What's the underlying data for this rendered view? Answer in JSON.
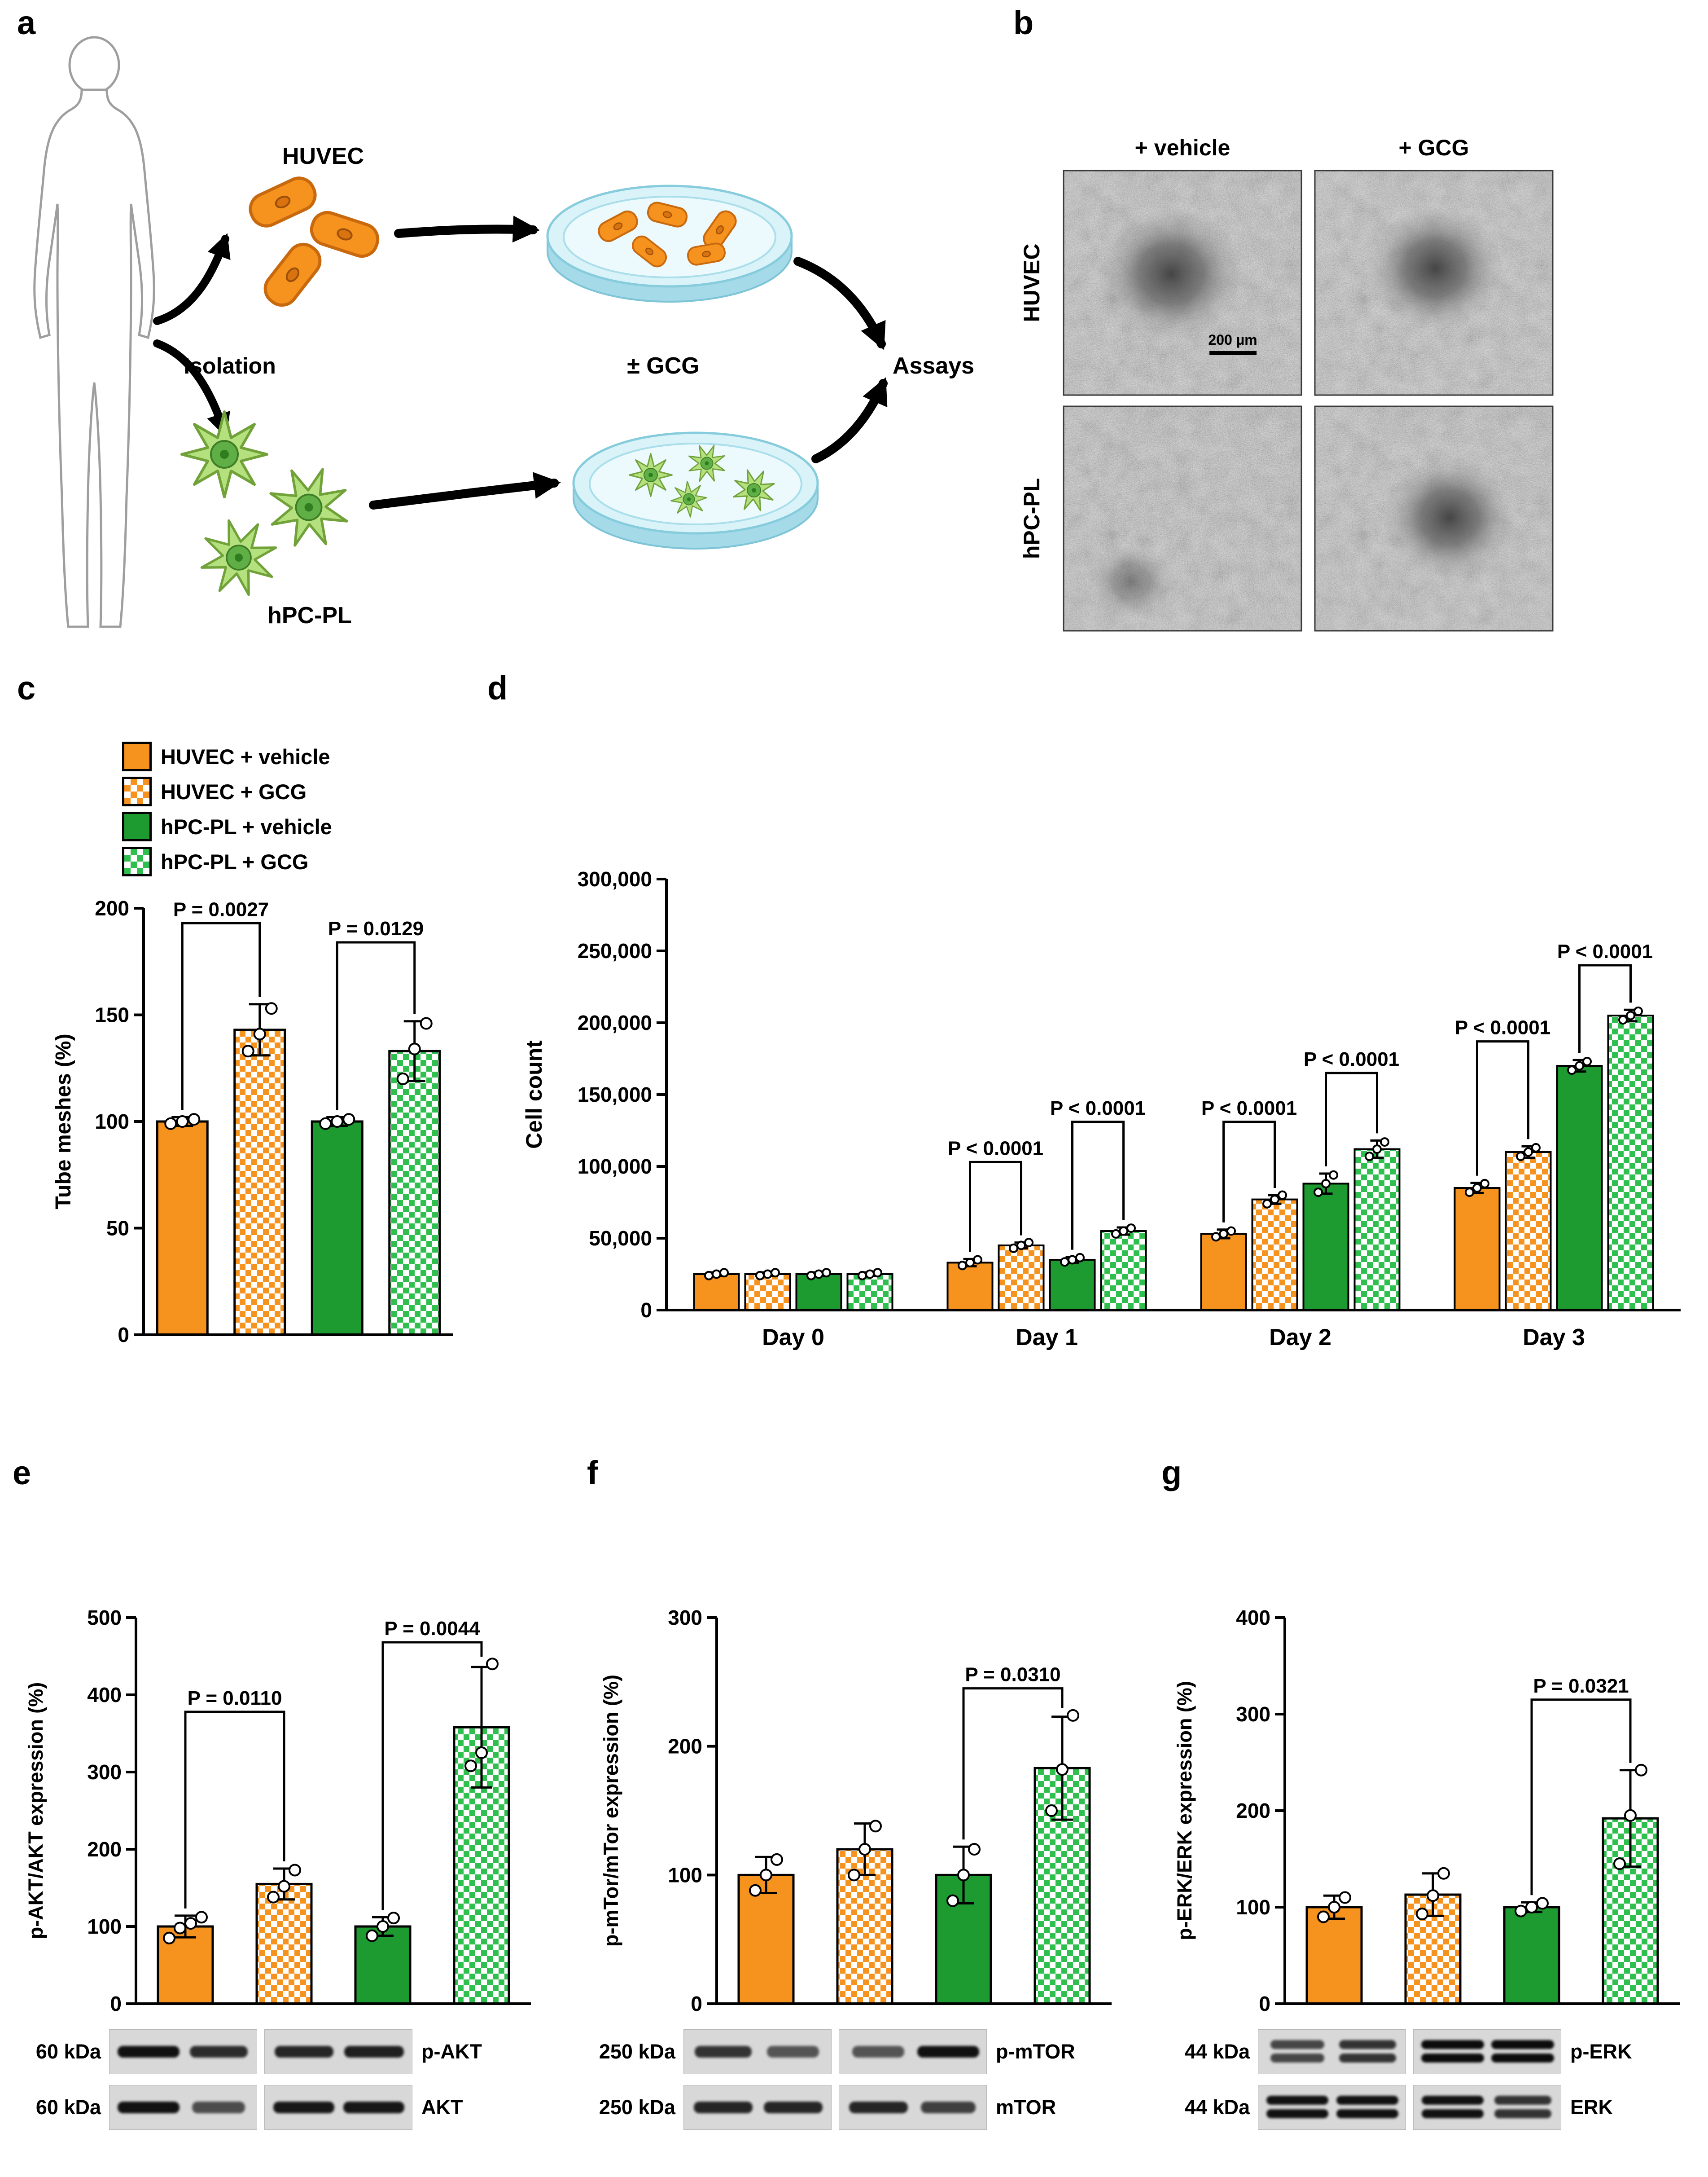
{
  "colors": {
    "orange": "#F6921E",
    "green": "#1E9B30",
    "checker_green": "#2FBF4E",
    "axis_black": "#000000"
  },
  "panel_labels": {
    "a": "a",
    "b": "b",
    "c": "c",
    "d": "d",
    "e": "e",
    "f": "f",
    "g": "g"
  },
  "panel_a": {
    "huvec": "HUVEC",
    "isolation": "Isolation",
    "hpcpl": "hPC-PL",
    "pm_gcg": "± GCG",
    "assays": "Assays"
  },
  "panel_b": {
    "col_headers": [
      "+ vehicle",
      "+ GCG"
    ],
    "row_headers": [
      "HUVEC",
      "hPC-PL"
    ],
    "scale_bar": "200 µm"
  },
  "legend": {
    "items": [
      {
        "label": "HUVEC + vehicle",
        "fill": "orange-solid"
      },
      {
        "label": "HUVEC + GCG",
        "fill": "orange-checker"
      },
      {
        "label": "hPC-PL + vehicle",
        "fill": "green-solid"
      },
      {
        "label": "hPC-PL + GCG",
        "fill": "green-checker"
      }
    ]
  },
  "chart_data": [
    {
      "panel": "c",
      "type": "bar",
      "ylabel": "Tube meshes (%)",
      "ylim": [
        0,
        200
      ],
      "yticks": [
        {
          "v": 0,
          "label": "0"
        },
        {
          "v": 50,
          "label": "50"
        },
        {
          "v": 100,
          "label": "100"
        },
        {
          "v": 150,
          "label": "150"
        },
        {
          "v": 200,
          "label": "200"
        }
      ],
      "categories": [
        ""
      ],
      "series": [
        {
          "name": "HUVEC + vehicle",
          "values": [
            100
          ],
          "errors": [
            2
          ],
          "points": [
            [
              99,
              100,
              101
            ]
          ]
        },
        {
          "name": "HUVEC + GCG",
          "values": [
            143
          ],
          "errors": [
            12
          ],
          "points": [
            [
              133,
              141,
              153
            ]
          ]
        },
        {
          "name": "hPC-PL + vehicle",
          "values": [
            100
          ],
          "errors": [
            2
          ],
          "points": [
            [
              99,
              100,
              101
            ]
          ]
        },
        {
          "name": "hPC-PL + GCG",
          "values": [
            133
          ],
          "errors": [
            14
          ],
          "points": [
            [
              120,
              134,
              146
            ]
          ]
        }
      ],
      "sig": [
        {
          "group": 0,
          "bars": [
            0,
            1
          ],
          "label": "P = 0.0027",
          "y": 193
        },
        {
          "group": 0,
          "bars": [
            2,
            3
          ],
          "label": "P = 0.0129",
          "y": 184
        }
      ]
    },
    {
      "panel": "d",
      "type": "bar",
      "ylabel": "Cell count",
      "ylim": [
        0,
        300000
      ],
      "yticks": [
        {
          "v": 0,
          "label": "0"
        },
        {
          "v": 50000,
          "label": "50,000"
        },
        {
          "v": 100000,
          "label": "100,000"
        },
        {
          "v": 150000,
          "label": "150,000"
        },
        {
          "v": 200000,
          "label": "200,000"
        },
        {
          "v": 250000,
          "label": "250,000"
        },
        {
          "v": 300000,
          "label": "300,000"
        }
      ],
      "categories": [
        "Day 0",
        "Day 1",
        "Day 2",
        "Day 3"
      ],
      "series": [
        {
          "name": "HUVEC + vehicle",
          "values": [
            25000,
            33000,
            53000,
            85000
          ],
          "errors": [
            1200,
            2500,
            3000,
            3500
          ],
          "points": [
            [
              24000,
              25000,
              26000
            ],
            [
              31000,
              33000,
              35000
            ],
            [
              51000,
              53000,
              55000
            ],
            [
              82000,
              85000,
              88000
            ]
          ]
        },
        {
          "name": "HUVEC + GCG",
          "values": [
            25000,
            45000,
            77000,
            110000
          ],
          "errors": [
            1200,
            2000,
            3000,
            4000
          ],
          "points": [
            [
              24000,
              25000,
              26000
            ],
            [
              43000,
              45000,
              47000
            ],
            [
              74000,
              77000,
              80000
            ],
            [
              107000,
              110000,
              113000
            ]
          ]
        },
        {
          "name": "hPC-PL + vehicle",
          "values": [
            25000,
            35000,
            88000,
            170000
          ],
          "errors": [
            1200,
            2000,
            7000,
            4000
          ],
          "points": [
            [
              24000,
              25000,
              26000
            ],
            [
              33500,
              35000,
              36500
            ],
            [
              82000,
              88000,
              94000
            ],
            [
              167000,
              170000,
              173000
            ]
          ]
        },
        {
          "name": "hPC-PL + GCG",
          "values": [
            25000,
            55000,
            112000,
            205000
          ],
          "errors": [
            1200,
            2500,
            6000,
            4000
          ],
          "points": [
            [
              24000,
              25000,
              26000
            ],
            [
              53000,
              55000,
              57000
            ],
            [
              107000,
              112000,
              117000
            ],
            [
              202000,
              205000,
              208000
            ]
          ]
        }
      ],
      "sig": [
        {
          "group": 1,
          "bars": [
            0,
            1
          ],
          "label": "P < 0.0001",
          "y": 103000
        },
        {
          "group": 1,
          "bars": [
            2,
            3
          ],
          "label": "P < 0.0001",
          "y": 131000
        },
        {
          "group": 2,
          "bars": [
            0,
            1
          ],
          "label": "P < 0.0001",
          "y": 131000
        },
        {
          "group": 2,
          "bars": [
            2,
            3
          ],
          "label": "P < 0.0001",
          "y": 165000
        },
        {
          "group": 3,
          "bars": [
            0,
            1
          ],
          "label": "P < 0.0001",
          "y": 187000
        },
        {
          "group": 3,
          "bars": [
            2,
            3
          ],
          "label": "P < 0.0001",
          "y": 240000
        }
      ]
    },
    {
      "panel": "e",
      "type": "bar",
      "ylabel": "p-AKT/AKT expression (%)",
      "ylim": [
        0,
        500
      ],
      "yticks": [
        {
          "v": 0,
          "label": "0"
        },
        {
          "v": 100,
          "label": "100"
        },
        {
          "v": 200,
          "label": "200"
        },
        {
          "v": 300,
          "label": "300"
        },
        {
          "v": 400,
          "label": "400"
        },
        {
          "v": 500,
          "label": "500"
        }
      ],
      "categories": [
        ""
      ],
      "series": [
        {
          "name": "HUVEC + vehicle",
          "values": [
            100
          ],
          "errors": [
            14
          ],
          "points": [
            [
              85,
              98,
              104,
              112
            ]
          ]
        },
        {
          "name": "HUVEC + GCG",
          "values": [
            155
          ],
          "errors": [
            20
          ],
          "points": [
            [
              138,
              152,
              173
            ]
          ]
        },
        {
          "name": "hPC-PL + vehicle",
          "values": [
            100
          ],
          "errors": [
            12
          ],
          "points": [
            [
              88,
              100,
              111
            ]
          ]
        },
        {
          "name": "hPC-PL + GCG",
          "values": [
            358
          ],
          "errors": [
            78
          ],
          "points": [
            [
              308,
              325,
              440
            ]
          ]
        }
      ],
      "sig": [
        {
          "group": 0,
          "bars": [
            0,
            1
          ],
          "label": "P = 0.0110",
          "y": 378
        },
        {
          "group": 0,
          "bars": [
            2,
            3
          ],
          "label": "P = 0.0044",
          "y": 468
        }
      ]
    },
    {
      "panel": "f",
      "type": "bar",
      "ylabel": "p-mTor/mTor expression (%)",
      "ylim": [
        0,
        300
      ],
      "yticks": [
        {
          "v": 0,
          "label": "0"
        },
        {
          "v": 100,
          "label": "100"
        },
        {
          "v": 200,
          "label": "200"
        },
        {
          "v": 300,
          "label": "300"
        }
      ],
      "categories": [
        ""
      ],
      "series": [
        {
          "name": "HUVEC + vehicle",
          "values": [
            100
          ],
          "errors": [
            14
          ],
          "points": [
            [
              88,
              100,
              112
            ]
          ]
        },
        {
          "name": "HUVEC + GCG",
          "values": [
            120
          ],
          "errors": [
            20
          ],
          "points": [
            [
              100,
              120,
              138
            ]
          ]
        },
        {
          "name": "hPC-PL + vehicle",
          "values": [
            100
          ],
          "errors": [
            22
          ],
          "points": [
            [
              80,
              100,
              120
            ]
          ]
        },
        {
          "name": "hPC-PL + GCG",
          "values": [
            183
          ],
          "errors": [
            40
          ],
          "points": [
            [
              150,
              182,
              224
            ]
          ]
        }
      ],
      "sig": [
        {
          "group": 0,
          "bars": [
            2,
            3
          ],
          "label": "P = 0.0310",
          "y": 245
        }
      ]
    },
    {
      "panel": "g",
      "type": "bar",
      "ylabel": "p-ERK/ERK expression (%)",
      "ylim": [
        0,
        400
      ],
      "yticks": [
        {
          "v": 0,
          "label": "0"
        },
        {
          "v": 100,
          "label": "100"
        },
        {
          "v": 200,
          "label": "200"
        },
        {
          "v": 300,
          "label": "300"
        },
        {
          "v": 400,
          "label": "400"
        }
      ],
      "categories": [
        ""
      ],
      "series": [
        {
          "name": "HUVEC + vehicle",
          "values": [
            100
          ],
          "errors": [
            12
          ],
          "points": [
            [
              90,
              100,
              110
            ]
          ]
        },
        {
          "name": "HUVEC + GCG",
          "values": [
            113
          ],
          "errors": [
            22
          ],
          "points": [
            [
              93,
              112,
              135
            ]
          ]
        },
        {
          "name": "hPC-PL + vehicle",
          "values": [
            100
          ],
          "errors": [
            5
          ],
          "points": [
            [
              96,
              100,
              104
            ]
          ]
        },
        {
          "name": "hPC-PL + GCG",
          "values": [
            192
          ],
          "errors": [
            50
          ],
          "points": [
            [
              145,
              195,
              242
            ]
          ]
        }
      ],
      "sig": [
        {
          "group": 0,
          "bars": [
            2,
            3
          ],
          "label": "P = 0.0321",
          "y": 315
        }
      ]
    }
  ],
  "western_blots": {
    "e": {
      "rows": [
        {
          "kda": "60 kDa",
          "protein": "p-AKT",
          "double": false,
          "boxes": [
            [
              0.95,
              0.75
            ],
            [
              0.8,
              0.85
            ]
          ]
        },
        {
          "kda": "60 kDa",
          "protein": "AKT",
          "double": false,
          "boxes": [
            [
              0.95,
              0.5
            ],
            [
              0.9,
              0.9
            ]
          ]
        }
      ]
    },
    "f": {
      "rows": [
        {
          "kda": "250 kDa",
          "protein": "p-mTOR",
          "double": false,
          "boxes": [
            [
              0.7,
              0.45
            ],
            [
              0.45,
              0.95
            ]
          ]
        },
        {
          "kda": "250 kDa",
          "protein": "mTOR",
          "double": false,
          "boxes": [
            [
              0.8,
              0.8
            ],
            [
              0.8,
              0.6
            ]
          ]
        }
      ]
    },
    "g": {
      "rows": [
        {
          "kda": "44 kDa",
          "protein": "p-ERK",
          "double": true,
          "boxes": [
            [
              0.55,
              0.7
            ],
            [
              1,
              1
            ]
          ]
        },
        {
          "kda": "44 kDa",
          "protein": "ERK",
          "double": true,
          "boxes": [
            [
              0.95,
              0.95
            ],
            [
              0.95,
              0.7
            ]
          ]
        }
      ]
    }
  }
}
